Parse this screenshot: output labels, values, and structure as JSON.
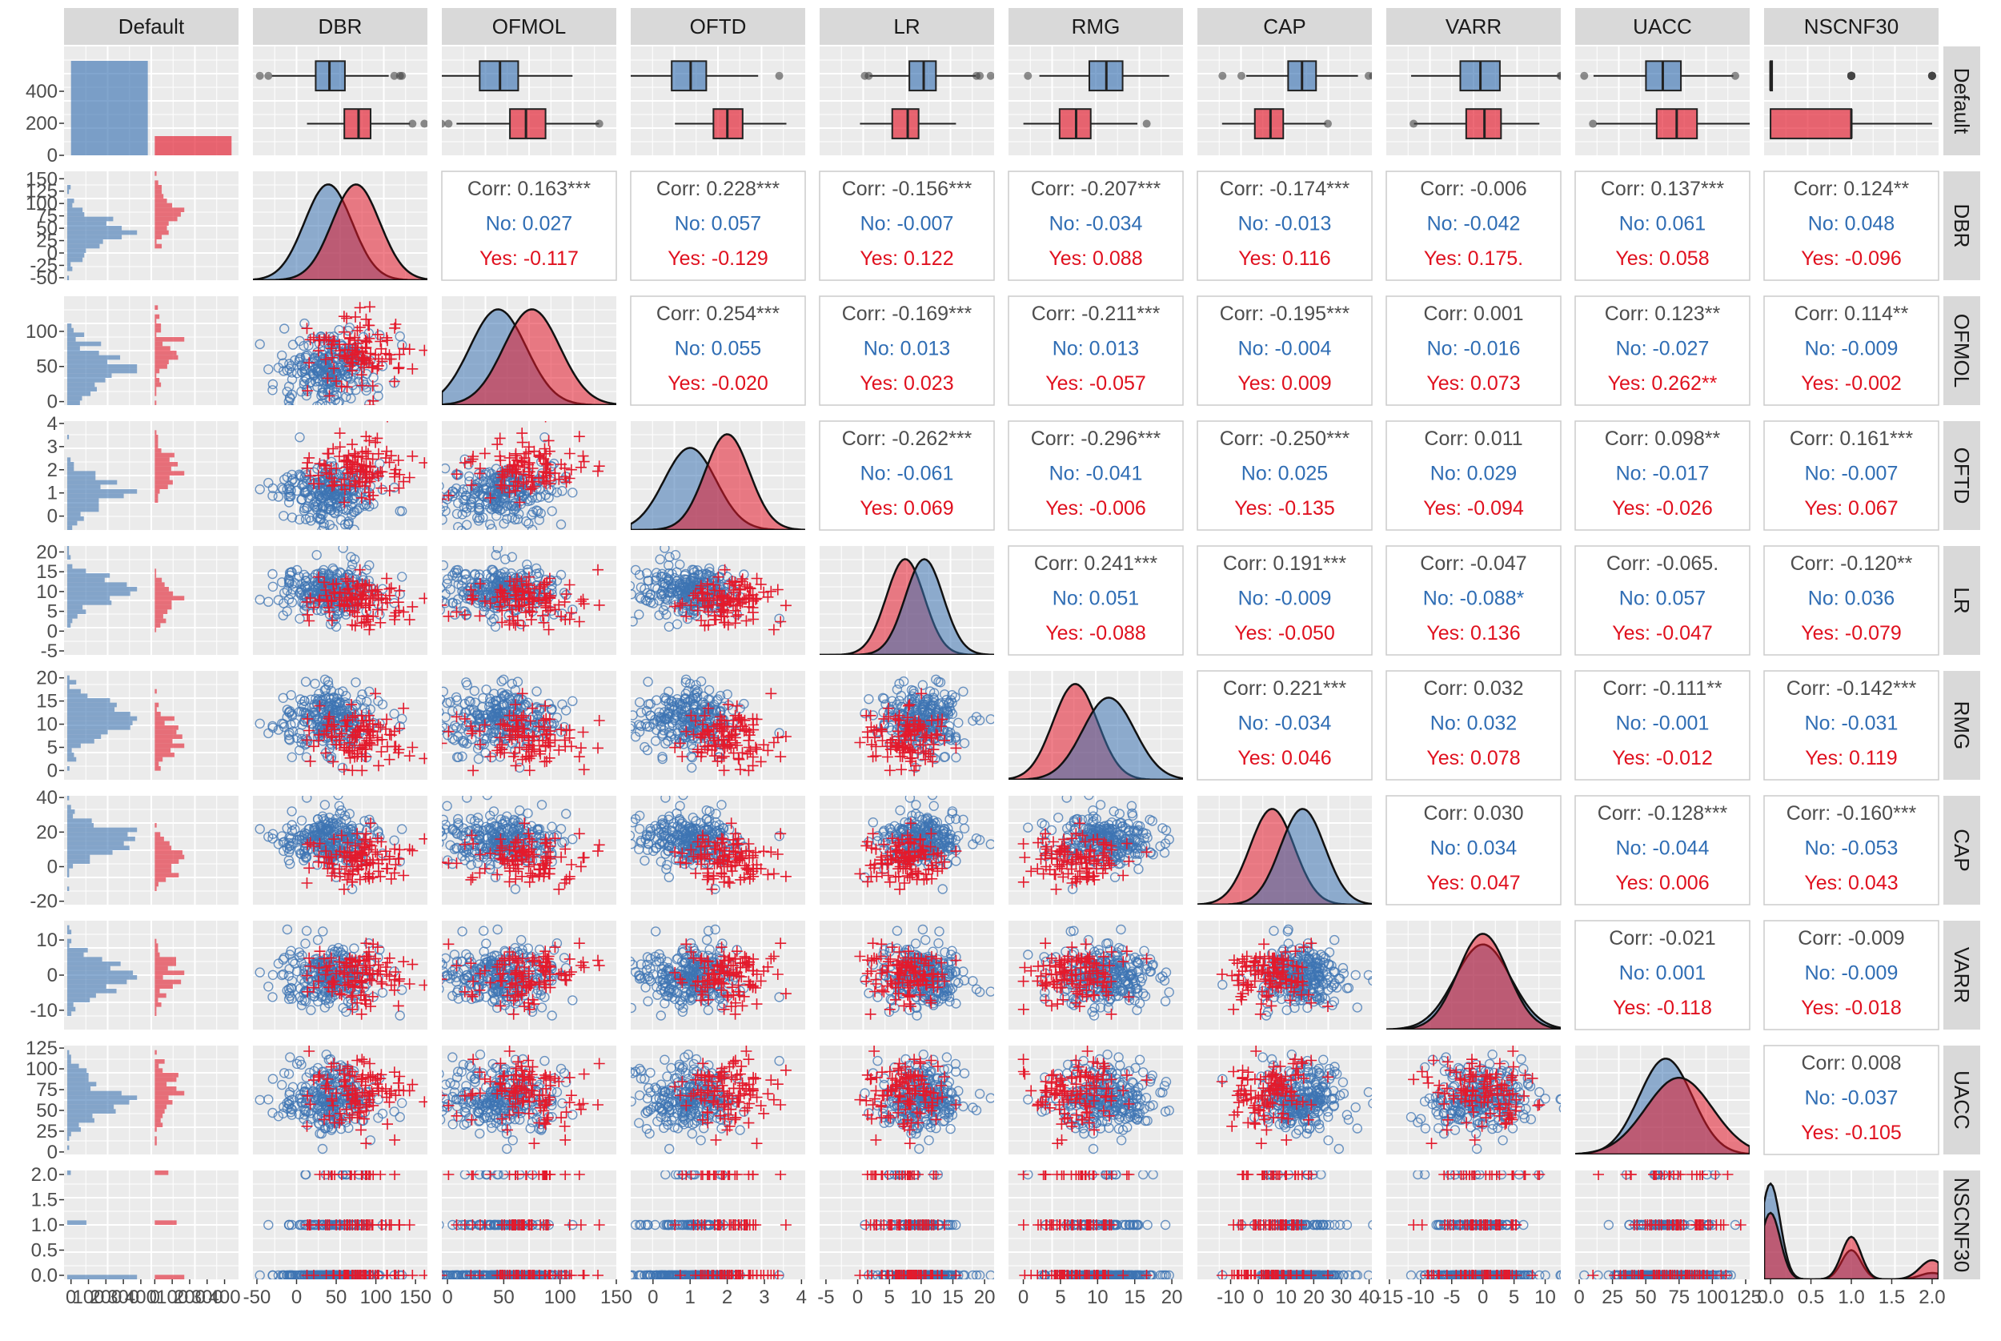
{
  "chart_data": {
    "type": "pairs",
    "group_variable": "Default",
    "groups": [
      {
        "name": "No",
        "color": "#3e74b3",
        "marker": "circle"
      },
      {
        "name": "Yes",
        "color": "#e31a2c",
        "marker": "plus"
      }
    ],
    "variables": [
      "Default",
      "DBR",
      "OFMOL",
      "OFTD",
      "LR",
      "RMG",
      "CAP",
      "VARR",
      "UACC",
      "NSCNF30"
    ],
    "default_counts": {
      "No": 590,
      "Yes": 120
    },
    "x_ticks": {
      "Default": [
        "0",
        "100",
        "200",
        "300",
        "400",
        "0",
        "100",
        "200",
        "300",
        "400"
      ],
      "DBR": [
        "-50",
        "0",
        "50",
        "100",
        "150"
      ],
      "OFMOL": [
        "0",
        "50",
        "100",
        "150"
      ],
      "OFTD": [
        "0",
        "1",
        "2",
        "3",
        "4"
      ],
      "LR": [
        "-5",
        "0",
        "5",
        "10",
        "15",
        "20"
      ],
      "RMG": [
        "0",
        "5",
        "10",
        "15",
        "20"
      ],
      "CAP": [
        "-10",
        "0",
        "10",
        "20",
        "30",
        "40"
      ],
      "VARR": [
        "-15",
        "-10",
        "-5",
        "0",
        "5",
        "10"
      ],
      "UACC": [
        "0",
        "25",
        "50",
        "75",
        "100",
        "125"
      ],
      "NSCNF30": [
        "0.0",
        "0.5",
        "1.0",
        "1.5",
        "2.0"
      ]
    },
    "y_ticks": {
      "Default": [
        "0",
        "200",
        "400"
      ],
      "DBR": [
        "-50",
        "-25",
        "0",
        "25",
        "50",
        "75",
        "100",
        "125",
        "150"
      ],
      "OFMOL": [
        "0",
        "50",
        "100"
      ],
      "OFTD": [
        "0",
        "1",
        "2",
        "3",
        "4"
      ],
      "LR": [
        "-5",
        "0",
        "5",
        "10",
        "15",
        "20"
      ],
      "RMG": [
        "0",
        "5",
        "10",
        "15",
        "20"
      ],
      "CAP": [
        "-20",
        "0",
        "20",
        "40"
      ],
      "VARR": [
        "-10",
        "0",
        "10"
      ],
      "UACC": [
        "0",
        "25",
        "50",
        "75",
        "100",
        "125"
      ],
      "NSCNF30": [
        "0.0",
        "0.5",
        "1.0",
        "1.5",
        "2.0"
      ]
    },
    "correlations": [
      {
        "row": "DBR",
        "col": "OFMOL",
        "corr": "Corr: 0.163***",
        "no": "No: 0.027",
        "yes": "Yes: -0.117"
      },
      {
        "row": "DBR",
        "col": "OFTD",
        "corr": "Corr: 0.228***",
        "no": "No: 0.057",
        "yes": "Yes: -0.129"
      },
      {
        "row": "DBR",
        "col": "LR",
        "corr": "Corr: -0.156***",
        "no": "No: -0.007",
        "yes": "Yes: 0.122"
      },
      {
        "row": "DBR",
        "col": "RMG",
        "corr": "Corr: -0.207***",
        "no": "No: -0.034",
        "yes": "Yes: 0.088"
      },
      {
        "row": "DBR",
        "col": "CAP",
        "corr": "Corr: -0.174***",
        "no": "No: -0.013",
        "yes": "Yes: 0.116"
      },
      {
        "row": "DBR",
        "col": "VARR",
        "corr": "Corr: -0.006",
        "no": "No: -0.042",
        "yes": "Yes: 0.175."
      },
      {
        "row": "DBR",
        "col": "UACC",
        "corr": "Corr: 0.137***",
        "no": "No: 0.061",
        "yes": "Yes: 0.058"
      },
      {
        "row": "DBR",
        "col": "NSCNF30",
        "corr": "Corr: 0.124**",
        "no": "No: 0.048",
        "yes": "Yes: -0.096"
      },
      {
        "row": "OFMOL",
        "col": "OFTD",
        "corr": "Corr: 0.254***",
        "no": "No: 0.055",
        "yes": "Yes: -0.020"
      },
      {
        "row": "OFMOL",
        "col": "LR",
        "corr": "Corr: -0.169***",
        "no": "No: 0.013",
        "yes": "Yes: 0.023"
      },
      {
        "row": "OFMOL",
        "col": "RMG",
        "corr": "Corr: -0.211***",
        "no": "No: 0.013",
        "yes": "Yes: -0.057"
      },
      {
        "row": "OFMOL",
        "col": "CAP",
        "corr": "Corr: -0.195***",
        "no": "No: -0.004",
        "yes": "Yes: 0.009"
      },
      {
        "row": "OFMOL",
        "col": "VARR",
        "corr": "Corr: 0.001",
        "no": "No: -0.016",
        "yes": "Yes: 0.073"
      },
      {
        "row": "OFMOL",
        "col": "UACC",
        "corr": "Corr: 0.123**",
        "no": "No: -0.027",
        "yes": "Yes: 0.262**"
      },
      {
        "row": "OFMOL",
        "col": "NSCNF30",
        "corr": "Corr: 0.114**",
        "no": "No: -0.009",
        "yes": "Yes: -0.002"
      },
      {
        "row": "OFTD",
        "col": "LR",
        "corr": "Corr: -0.262***",
        "no": "No: -0.061",
        "yes": "Yes: 0.069"
      },
      {
        "row": "OFTD",
        "col": "RMG",
        "corr": "Corr: -0.296***",
        "no": "No: -0.041",
        "yes": "Yes: -0.006"
      },
      {
        "row": "OFTD",
        "col": "CAP",
        "corr": "Corr: -0.250***",
        "no": "No: 0.025",
        "yes": "Yes: -0.135"
      },
      {
        "row": "OFTD",
        "col": "VARR",
        "corr": "Corr: 0.011",
        "no": "No: 0.029",
        "yes": "Yes: -0.094"
      },
      {
        "row": "OFTD",
        "col": "UACC",
        "corr": "Corr: 0.098**",
        "no": "No: -0.017",
        "yes": "Yes: -0.026"
      },
      {
        "row": "OFTD",
        "col": "NSCNF30",
        "corr": "Corr: 0.161***",
        "no": "No: -0.007",
        "yes": "Yes: 0.067"
      },
      {
        "row": "LR",
        "col": "RMG",
        "corr": "Corr: 0.241***",
        "no": "No: 0.051",
        "yes": "Yes: -0.088"
      },
      {
        "row": "LR",
        "col": "CAP",
        "corr": "Corr: 0.191***",
        "no": "No: -0.009",
        "yes": "Yes: -0.050"
      },
      {
        "row": "LR",
        "col": "VARR",
        "corr": "Corr: -0.047",
        "no": "No: -0.088*",
        "yes": "Yes: 0.136"
      },
      {
        "row": "LR",
        "col": "UACC",
        "corr": "Corr: -0.065.",
        "no": "No: 0.057",
        "yes": "Yes: -0.047"
      },
      {
        "row": "LR",
        "col": "NSCNF30",
        "corr": "Corr: -0.120**",
        "no": "No: 0.036",
        "yes": "Yes: -0.079"
      },
      {
        "row": "RMG",
        "col": "CAP",
        "corr": "Corr: 0.221***",
        "no": "No: -0.034",
        "yes": "Yes: 0.046"
      },
      {
        "row": "RMG",
        "col": "VARR",
        "corr": "Corr: 0.032",
        "no": "No: 0.032",
        "yes": "Yes: 0.078"
      },
      {
        "row": "RMG",
        "col": "UACC",
        "corr": "Corr: -0.111**",
        "no": "No: -0.001",
        "yes": "Yes: -0.012"
      },
      {
        "row": "RMG",
        "col": "NSCNF30",
        "corr": "Corr: -0.142***",
        "no": "No: -0.031",
        "yes": "Yes: 0.119"
      },
      {
        "row": "CAP",
        "col": "VARR",
        "corr": "Corr: 0.030",
        "no": "No: 0.034",
        "yes": "Yes: 0.047"
      },
      {
        "row": "CAP",
        "col": "UACC",
        "corr": "Corr: -0.128***",
        "no": "No: -0.044",
        "yes": "Yes: 0.006"
      },
      {
        "row": "CAP",
        "col": "NSCNF30",
        "corr": "Corr: -0.160***",
        "no": "No: -0.053",
        "yes": "Yes: 0.043"
      },
      {
        "row": "VARR",
        "col": "UACC",
        "corr": "Corr: -0.021",
        "no": "No: 0.001",
        "yes": "Yes: -0.118"
      },
      {
        "row": "VARR",
        "col": "NSCNF30",
        "corr": "Corr: -0.009",
        "no": "No: -0.009",
        "yes": "Yes: -0.018"
      },
      {
        "row": "UACC",
        "col": "NSCNF30",
        "corr": "Corr: 0.008",
        "no": "No: -0.037",
        "yes": "Yes: -0.105"
      }
    ],
    "distributions": {
      "DBR": {
        "No": {
          "mean": 40,
          "sd": 30
        },
        "Yes": {
          "mean": 75,
          "sd": 30
        }
      },
      "OFMOL": {
        "No": {
          "mean": 45,
          "sd": 25
        },
        "Yes": {
          "mean": 75,
          "sd": 25
        }
      },
      "OFTD": {
        "No": {
          "mean": 1.0,
          "sd": 0.7
        },
        "Yes": {
          "mean": 2.0,
          "sd": 0.6
        }
      },
      "LR": {
        "No": {
          "mean": 10.5,
          "sd": 3.0
        },
        "Yes": {
          "mean": 7.5,
          "sd": 3.0
        }
      },
      "RMG": {
        "No": {
          "mean": 11.5,
          "sd": 3.5
        },
        "Yes": {
          "mean": 7.0,
          "sd": 3.0
        }
      },
      "CAP": {
        "No": {
          "mean": 16,
          "sd": 8
        },
        "Yes": {
          "mean": 5,
          "sd": 8
        }
      },
      "VARR": {
        "No": {
          "mean": 0,
          "sd": 4.5
        },
        "Yes": {
          "mean": 0,
          "sd": 4.0
        }
      },
      "UACC": {
        "No": {
          "mean": 65,
          "sd": 20
        },
        "Yes": {
          "mean": 75,
          "sd": 25
        }
      },
      "NSCNF30": {
        "No": {
          "p0": 0.72,
          "p1": 0.22,
          "p2": 0.06
        },
        "Yes": {
          "p0": 0.5,
          "p1": 0.32,
          "p2": 0.18
        }
      }
    }
  }
}
